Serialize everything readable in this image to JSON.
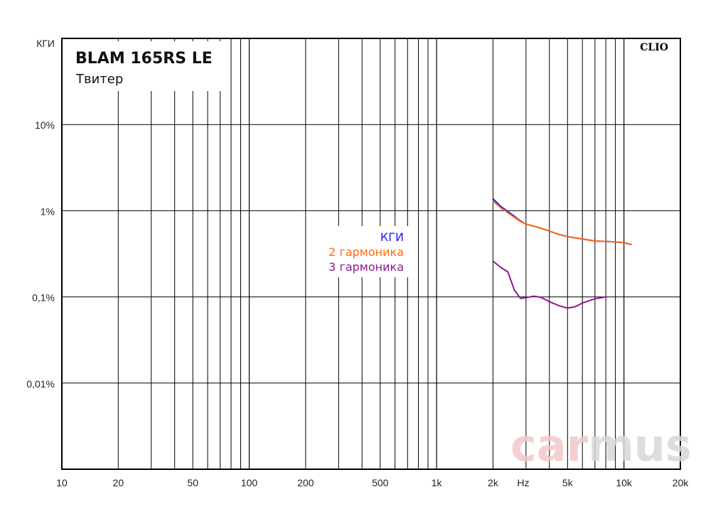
{
  "chart_data": {
    "type": "line",
    "title": "BLAM 165RS LE",
    "subtitle": "Твитер",
    "brand": "CLIO",
    "watermark": {
      "left": "car",
      "right": "mus",
      "left_color": "#f2c8c8",
      "right_color": "#d8d8d8"
    },
    "xlabel": "Hz",
    "x_scale": "log",
    "xlim": [
      10,
      20000
    ],
    "y_scale": "log",
    "ylim": [
      0.001,
      100
    ],
    "x_ticks": [
      {
        "value": 10,
        "label": "10"
      },
      {
        "value": 20,
        "label": "20"
      },
      {
        "value": 50,
        "label": "50"
      },
      {
        "value": 100,
        "label": "100"
      },
      {
        "value": 200,
        "label": "200"
      },
      {
        "value": 500,
        "label": "500"
      },
      {
        "value": 1000,
        "label": "1k"
      },
      {
        "value": 2000,
        "label": "2k"
      },
      {
        "value": 5000,
        "label": "5k"
      },
      {
        "value": 10000,
        "label": "10k"
      },
      {
        "value": 20000,
        "label": "20k"
      }
    ],
    "y_ticks": [
      {
        "value": 100,
        "label": "КГИ"
      },
      {
        "value": 10,
        "label": "10%"
      },
      {
        "value": 1,
        "label": "1%"
      },
      {
        "value": 0.1,
        "label": "0,1%"
      },
      {
        "value": 0.01,
        "label": "0,01%"
      }
    ],
    "grid": true,
    "legend_position": "center",
    "series": [
      {
        "name": "КГИ",
        "color": "#1a1aff",
        "x": [
          2000,
          2200,
          2500,
          2800,
          3000,
          3500,
          4000,
          4500,
          5000,
          6000,
          7000,
          8000,
          9000,
          10000,
          11000
        ],
        "y": [
          1.38,
          1.12,
          0.92,
          0.76,
          0.7,
          0.64,
          0.58,
          0.53,
          0.5,
          0.47,
          0.445,
          0.44,
          0.435,
          0.425,
          0.405
        ]
      },
      {
        "name": "2 гармоника",
        "color": "#ff6a13",
        "x": [
          2000,
          2200,
          2500,
          2800,
          3000,
          3500,
          4000,
          4500,
          5000,
          6000,
          7000,
          8000,
          9000,
          10000,
          11000
        ],
        "y": [
          1.3,
          1.08,
          0.89,
          0.75,
          0.7,
          0.64,
          0.58,
          0.53,
          0.5,
          0.47,
          0.445,
          0.44,
          0.435,
          0.425,
          0.405
        ]
      },
      {
        "name": "3 гармоника",
        "color": "#8b1a8b",
        "x": [
          2000,
          2200,
          2400,
          2600,
          2800,
          3000,
          3300,
          3600,
          4000,
          4500,
          5000,
          5500,
          6000,
          7000,
          8000
        ],
        "y": [
          0.26,
          0.22,
          0.195,
          0.12,
          0.096,
          0.098,
          0.102,
          0.099,
          0.088,
          0.079,
          0.074,
          0.077,
          0.085,
          0.095,
          0.1
        ]
      }
    ]
  }
}
